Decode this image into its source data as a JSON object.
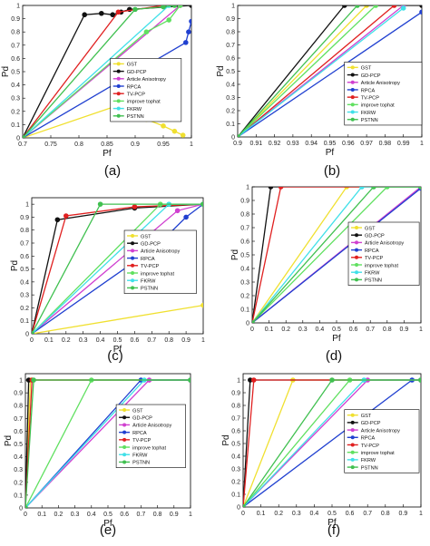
{
  "chart_data": [
    {
      "type": "line",
      "panel_label": "(a)",
      "xlabel": "Pf",
      "ylabel": "Pd",
      "xlim": [
        0.7,
        1.0
      ],
      "ylim": [
        0,
        1
      ],
      "xticks": [
        "0.7",
        "0.75",
        "0.8",
        "0.85",
        "0.9",
        "0.95",
        "1"
      ],
      "yticks": [
        "0",
        "0.1",
        "0.2",
        "0.3",
        "0.4",
        "0.5",
        "0.6",
        "0.7",
        "0.8",
        "0.9",
        "1"
      ],
      "xtick_values": [
        0.7,
        0.75,
        0.8,
        0.85,
        0.9,
        0.95,
        1.0
      ],
      "ytick_values": [
        0,
        0.1,
        0.2,
        0.3,
        0.4,
        0.5,
        0.6,
        0.7,
        0.8,
        0.9,
        1
      ],
      "grid": false,
      "legend": "right",
      "series": [
        {
          "name": "GST",
          "color": "#f0e030",
          "x": [
            0.7,
            0.88,
            0.9,
            0.92,
            0.95,
            0.97,
            0.985
          ],
          "y": [
            0,
            0.26,
            0.22,
            0.14,
            0.09,
            0.05,
            0.02
          ]
        },
        {
          "name": "GD-PCP",
          "color": "#111111",
          "x": [
            0.7,
            0.81,
            0.84,
            0.86,
            0.875,
            0.89,
            1.0
          ],
          "y": [
            0,
            0.93,
            0.94,
            0.93,
            0.95,
            0.97,
            1.0
          ]
        },
        {
          "name": "Article Anisotropy",
          "color": "#d040d0",
          "x": [
            0.7,
            0.98
          ],
          "y": [
            0,
            1.0
          ]
        },
        {
          "name": "RPCA",
          "color": "#2040d0",
          "x": [
            0.7,
            0.99,
            0.995,
            1.0
          ],
          "y": [
            0,
            0.72,
            0.8,
            0.88
          ]
        },
        {
          "name": "TV-PCP",
          "color": "#e02020",
          "x": [
            0.7,
            0.87,
            0.95
          ],
          "y": [
            0,
            0.95,
            1.0
          ]
        },
        {
          "name": "improve tophat",
          "color": "#60e060",
          "x": [
            0.7,
            0.92,
            0.96,
            0.98
          ],
          "y": [
            0,
            0.8,
            0.89,
            1.0
          ]
        },
        {
          "name": "FKRW",
          "color": "#40e0e8",
          "x": [
            0.7,
            0.96
          ],
          "y": [
            0,
            1.0
          ]
        },
        {
          "name": "PSTNN",
          "color": "#40c050",
          "x": [
            0.7,
            0.9,
            0.95,
            0.97
          ],
          "y": [
            0,
            0.97,
            0.99,
            1.0
          ]
        }
      ]
    },
    {
      "type": "line",
      "panel_label": "(b)",
      "xlabel": "Pf",
      "ylabel": "Pd",
      "xlim": [
        0.9,
        1.0
      ],
      "ylim": [
        0,
        1
      ],
      "xticks": [
        "0.9",
        "0.91",
        "0.92",
        "0.93",
        "0.94",
        "0.95",
        "0.96",
        "0.97",
        "0.98",
        "0.99",
        "1"
      ],
      "yticks": [
        "0",
        "0.1",
        "0.2",
        "0.3",
        "0.4",
        "0.5",
        "0.6",
        "0.7",
        "0.8",
        "0.9",
        "1"
      ],
      "xtick_values": [
        0.9,
        0.91,
        0.92,
        0.93,
        0.94,
        0.95,
        0.96,
        0.97,
        0.98,
        0.99,
        1.0
      ],
      "ytick_values": [
        0,
        0.1,
        0.2,
        0.3,
        0.4,
        0.5,
        0.6,
        0.7,
        0.8,
        0.9,
        1
      ],
      "grid": false,
      "legend": "bottom-right",
      "series": [
        {
          "name": "GST",
          "color": "#f0e030",
          "x": [
            0.9,
            0.97
          ],
          "y": [
            0,
            1.0
          ]
        },
        {
          "name": "GD-PCP",
          "color": "#111111",
          "x": [
            0.9,
            0.958,
            1.0
          ],
          "y": [
            0,
            1.0,
            1.0
          ]
        },
        {
          "name": "Article Anisotropy",
          "color": "#d040d0",
          "x": [
            0.9,
            0.99
          ],
          "y": [
            0,
            1.0
          ]
        },
        {
          "name": "RPCA",
          "color": "#2040d0",
          "x": [
            0.9,
            1.0
          ],
          "y": [
            0,
            0.95
          ]
        },
        {
          "name": "TV-PCP",
          "color": "#e02020",
          "x": [
            0.9,
            0.985
          ],
          "y": [
            0,
            1.0
          ]
        },
        {
          "name": "improve tophat",
          "color": "#60e060",
          "x": [
            0.9,
            0.975
          ],
          "y": [
            0,
            1.0
          ]
        },
        {
          "name": "FKRW",
          "color": "#40e0e8",
          "x": [
            0.9,
            0.99
          ],
          "y": [
            0,
            0.98
          ]
        },
        {
          "name": "PSTNN",
          "color": "#40c050",
          "x": [
            0.9,
            0.965
          ],
          "y": [
            0,
            1.0
          ]
        }
      ]
    },
    {
      "type": "line",
      "panel_label": "(c)",
      "xlabel": "Pf",
      "ylabel": "Pd",
      "xlim": [
        0,
        1
      ],
      "ylim": [
        0,
        1.05
      ],
      "xticks": [
        "0",
        "0.1",
        "0.2",
        "0.3",
        "0.4",
        "0.5",
        "0.6",
        "0.7",
        "0.8",
        "0.9",
        "1"
      ],
      "yticks": [
        "0",
        "0.1",
        "0.2",
        "0.3",
        "0.4",
        "0.5",
        "0.6",
        "0.7",
        "0.8",
        "0.9",
        "1"
      ],
      "xtick_values": [
        0,
        0.1,
        0.2,
        0.3,
        0.4,
        0.5,
        0.6,
        0.7,
        0.8,
        0.9,
        1
      ],
      "ytick_values": [
        0,
        0.1,
        0.2,
        0.3,
        0.4,
        0.5,
        0.6,
        0.7,
        0.8,
        0.9,
        1
      ],
      "grid": false,
      "legend": "right",
      "series": [
        {
          "name": "GST",
          "color": "#f0e030",
          "x": [
            0,
            1.0
          ],
          "y": [
            0,
            0.22
          ]
        },
        {
          "name": "GD-PCP",
          "color": "#111111",
          "x": [
            0,
            0.15,
            0.6,
            1.0
          ],
          "y": [
            0,
            0.88,
            0.97,
            1.0
          ]
        },
        {
          "name": "Article Anisotropy",
          "color": "#d040d0",
          "x": [
            0,
            0.85,
            1.0
          ],
          "y": [
            0,
            0.95,
            1.0
          ]
        },
        {
          "name": "RPCA",
          "color": "#2040d0",
          "x": [
            0,
            0.7,
            0.8,
            0.9,
            1.0
          ],
          "y": [
            0,
            0.65,
            0.77,
            0.9,
            1.0
          ]
        },
        {
          "name": "TV-PCP",
          "color": "#e02020",
          "x": [
            0,
            0.2,
            0.6,
            1.0
          ],
          "y": [
            0,
            0.91,
            0.98,
            1.0
          ]
        },
        {
          "name": "improve tophat",
          "color": "#60e060",
          "x": [
            0,
            0.75,
            1.0
          ],
          "y": [
            0,
            1.0,
            1.0
          ]
        },
        {
          "name": "FKRW",
          "color": "#40e0e8",
          "x": [
            0,
            0.8,
            1.0
          ],
          "y": [
            0,
            1.0,
            1.0
          ]
        },
        {
          "name": "PSTNN",
          "color": "#40c050",
          "x": [
            0,
            0.4,
            1.0
          ],
          "y": [
            0,
            1.0,
            1.0
          ]
        }
      ]
    },
    {
      "type": "line",
      "panel_label": "(d)",
      "xlabel": "Pf",
      "ylabel": "Pd",
      "xlim": [
        0,
        1
      ],
      "ylim": [
        0,
        1
      ],
      "xticks": [
        "0",
        "0.1",
        "0.2",
        "0.3",
        "0.4",
        "0.5",
        "0.6",
        "0.7",
        "0.8",
        "0.9",
        "1"
      ],
      "yticks": [
        "0",
        "0.1",
        "0.2",
        "0.3",
        "0.4",
        "0.5",
        "0.6",
        "0.7",
        "0.8",
        "0.9",
        "1"
      ],
      "xtick_values": [
        0,
        0.1,
        0.2,
        0.3,
        0.4,
        0.5,
        0.6,
        0.7,
        0.8,
        0.9,
        1
      ],
      "ytick_values": [
        0,
        0.1,
        0.2,
        0.3,
        0.4,
        0.5,
        0.6,
        0.7,
        0.8,
        0.9,
        1
      ],
      "grid": false,
      "legend": "right",
      "series": [
        {
          "name": "GST",
          "color": "#f0e030",
          "x": [
            0,
            0.56,
            1.0
          ],
          "y": [
            0,
            1.0,
            1.0
          ]
        },
        {
          "name": "GD-PCP",
          "color": "#111111",
          "x": [
            0,
            0.11,
            1.0
          ],
          "y": [
            0,
            1.0,
            1.0
          ]
        },
        {
          "name": "Article Anisotropy",
          "color": "#d040d0",
          "x": [
            0,
            1.0
          ],
          "y": [
            0,
            1.0
          ]
        },
        {
          "name": "RPCA",
          "color": "#2040d0",
          "x": [
            0,
            1.0
          ],
          "y": [
            0,
            0.99
          ]
        },
        {
          "name": "TV-PCP",
          "color": "#e02020",
          "x": [
            0,
            0.17,
            1.0
          ],
          "y": [
            0,
            1.0,
            1.0
          ]
        },
        {
          "name": "improve tophat",
          "color": "#60e060",
          "x": [
            0,
            0.8,
            1.0
          ],
          "y": [
            0,
            1.0,
            1.0
          ]
        },
        {
          "name": "FKRW",
          "color": "#40e0e8",
          "x": [
            0,
            0.65,
            1.0
          ],
          "y": [
            0,
            1.0,
            1.0
          ]
        },
        {
          "name": "PSTNN",
          "color": "#40c050",
          "x": [
            0,
            0.72,
            1.0
          ],
          "y": [
            0,
            1.0,
            1.0
          ]
        }
      ]
    },
    {
      "type": "line",
      "panel_label": "(e)",
      "xlabel": "Pf",
      "ylabel": "Pd",
      "xlim": [
        0,
        1
      ],
      "ylim": [
        0,
        1.05
      ],
      "xticks": [
        "0",
        "0.1",
        "0.2",
        "0.3",
        "0.4",
        "0.5",
        "0.6",
        "0.7",
        "0.8",
        "0.9",
        "1"
      ],
      "yticks": [
        "0",
        "0.1",
        "0.2",
        "0.3",
        "0.4",
        "0.5",
        "0.6",
        "0.7",
        "0.8",
        "0.9",
        "1"
      ],
      "xtick_values": [
        0,
        0.1,
        0.2,
        0.3,
        0.4,
        0.5,
        0.6,
        0.7,
        0.8,
        0.9,
        1
      ],
      "ytick_values": [
        0,
        0.1,
        0.2,
        0.3,
        0.4,
        0.5,
        0.6,
        0.7,
        0.8,
        0.9,
        1
      ],
      "grid": false,
      "legend": "right",
      "series": [
        {
          "name": "GST",
          "color": "#f0e030",
          "x": [
            0,
            0.03,
            1.0
          ],
          "y": [
            0,
            1.0,
            1.0
          ]
        },
        {
          "name": "GD-PCP",
          "color": "#111111",
          "x": [
            0,
            0.02,
            1.0
          ],
          "y": [
            0,
            1.0,
            1.0
          ]
        },
        {
          "name": "Article Anisotropy",
          "color": "#d040d0",
          "x": [
            0,
            0.75,
            1.0
          ],
          "y": [
            0,
            1.0,
            1.0
          ]
        },
        {
          "name": "RPCA",
          "color": "#2040d0",
          "x": [
            0,
            0.7,
            1.0
          ],
          "y": [
            0,
            1.0,
            1.0
          ]
        },
        {
          "name": "TV-PCP",
          "color": "#e02020",
          "x": [
            0,
            0.04,
            1.0
          ],
          "y": [
            0,
            1.0,
            1.0
          ]
        },
        {
          "name": "improve tophat",
          "color": "#60e060",
          "x": [
            0,
            0.4,
            1.0
          ],
          "y": [
            0,
            1.0,
            1.0
          ]
        },
        {
          "name": "FKRW",
          "color": "#40e0e8",
          "x": [
            0,
            0.72,
            1.0
          ],
          "y": [
            0,
            1.0,
            1.0
          ]
        },
        {
          "name": "PSTNN",
          "color": "#40c050",
          "x": [
            0,
            0.05,
            1.0
          ],
          "y": [
            0,
            1.0,
            1.0
          ]
        }
      ]
    },
    {
      "type": "line",
      "panel_label": "(f)",
      "xlabel": "Pf",
      "ylabel": "Pd",
      "xlim": [
        0,
        1
      ],
      "ylim": [
        0,
        1.05
      ],
      "xticks": [
        "0",
        "0.1",
        "0.2",
        "0.3",
        "0.4",
        "0.5",
        "0.6",
        "0.7",
        "0.8",
        "0.9",
        "1"
      ],
      "yticks": [
        "0",
        "0.1",
        "0.2",
        "0.3",
        "0.4",
        "0.5",
        "0.6",
        "0.7",
        "0.8",
        "0.9",
        "1"
      ],
      "xtick_values": [
        0,
        0.1,
        0.2,
        0.3,
        0.4,
        0.5,
        0.6,
        0.7,
        0.8,
        0.9,
        1
      ],
      "ytick_values": [
        0,
        0.1,
        0.2,
        0.3,
        0.4,
        0.5,
        0.6,
        0.7,
        0.8,
        0.9,
        1
      ],
      "grid": false,
      "legend": "right",
      "series": [
        {
          "name": "GST",
          "color": "#f0e030",
          "x": [
            0,
            0.28,
            1.0
          ],
          "y": [
            0,
            1.0,
            1.0
          ]
        },
        {
          "name": "GD-PCP",
          "color": "#111111",
          "x": [
            0,
            0.04,
            1.0
          ],
          "y": [
            0,
            1.0,
            1.0
          ]
        },
        {
          "name": "Article Anisotropy",
          "color": "#d040d0",
          "x": [
            0,
            0.7,
            1.0
          ],
          "y": [
            0,
            1.0,
            1.0
          ]
        },
        {
          "name": "RPCA",
          "color": "#2040d0",
          "x": [
            0,
            0.95,
            1.0
          ],
          "y": [
            0,
            1.0,
            1.0
          ]
        },
        {
          "name": "TV-PCP",
          "color": "#e02020",
          "x": [
            0,
            0.06,
            1.0
          ],
          "y": [
            0,
            1.0,
            1.0
          ]
        },
        {
          "name": "improve tophat",
          "color": "#60e060",
          "x": [
            0,
            0.6,
            1.0
          ],
          "y": [
            0,
            1.0,
            1.0
          ]
        },
        {
          "name": "FKRW",
          "color": "#40e0e8",
          "x": [
            0,
            0.68,
            1.0
          ],
          "y": [
            0,
            1.0,
            1.0
          ]
        },
        {
          "name": "PSTNN",
          "color": "#40c050",
          "x": [
            0,
            0.5,
            1.0
          ],
          "y": [
            0,
            1.0,
            1.0
          ]
        }
      ]
    }
  ]
}
